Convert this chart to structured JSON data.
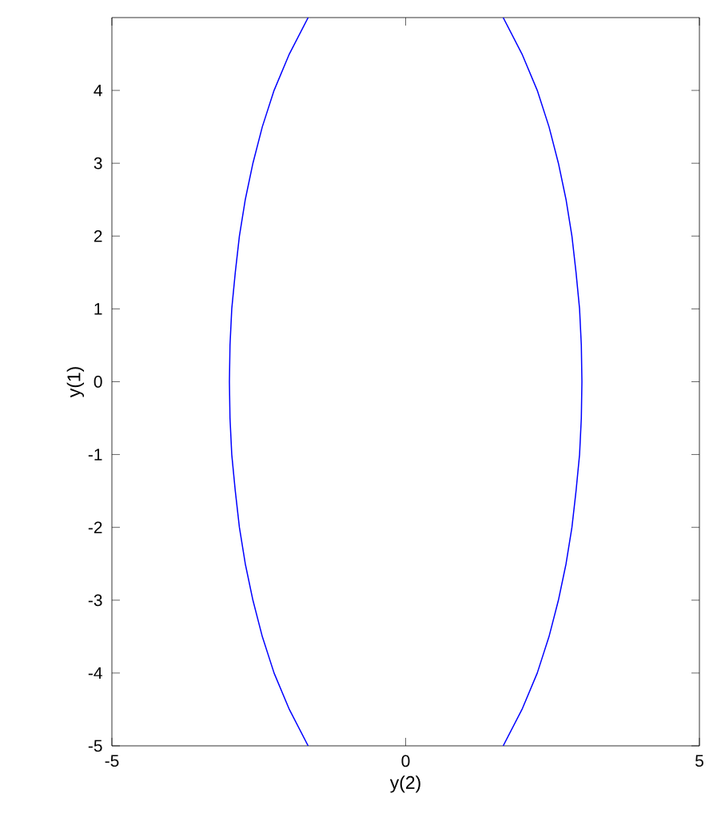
{
  "chart_data": {
    "type": "line",
    "xlabel": "y(2)",
    "ylabel": "y(1)",
    "xlim": [
      -5,
      5
    ],
    "ylim": [
      -5,
      5
    ],
    "xticks": [
      -5,
      0,
      5
    ],
    "yticks": [
      -5,
      -4,
      -3,
      -2,
      -1,
      0,
      1,
      2,
      3,
      4
    ],
    "series": [
      {
        "color": "#0000ff",
        "x": [
          -1.66,
          -1.98,
          -2.24,
          -2.44,
          -2.6,
          -2.73,
          -2.83,
          -2.9,
          -2.96,
          -2.99,
          -3.0,
          -2.99,
          -2.96,
          -2.9,
          -2.83,
          -2.73,
          -2.6,
          -2.44,
          -2.24,
          -1.98,
          -1.66
        ],
        "values": [
          -5,
          -4.5,
          -4,
          -3.5,
          -3,
          -2.5,
          -2,
          -1.5,
          -1,
          -0.5,
          0,
          0.5,
          1,
          1.5,
          2,
          2.5,
          3,
          3.5,
          4,
          4.5,
          5
        ]
      },
      {
        "color": "#0000ff",
        "x": [
          1.66,
          1.98,
          2.24,
          2.44,
          2.6,
          2.73,
          2.83,
          2.9,
          2.96,
          2.99,
          3.0,
          2.99,
          2.96,
          2.9,
          2.83,
          2.73,
          2.6,
          2.44,
          2.24,
          1.98,
          1.66
        ],
        "values": [
          -5,
          -4.5,
          -4,
          -3.5,
          -3,
          -2.5,
          -2,
          -1.5,
          -1,
          -0.5,
          0,
          0.5,
          1,
          1.5,
          2,
          2.5,
          3,
          3.5,
          4,
          4.5,
          5
        ]
      }
    ]
  }
}
